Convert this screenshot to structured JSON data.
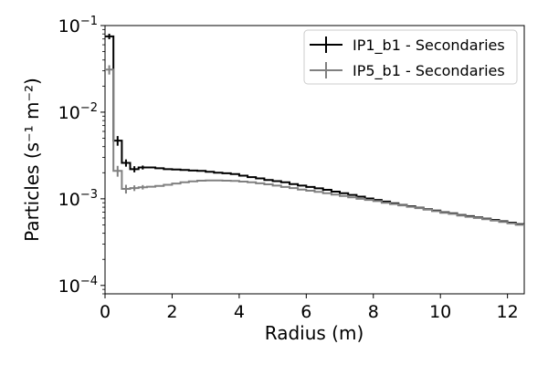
{
  "chart_data": {
    "type": "line",
    "title": "",
    "xlabel": "Radius (m)",
    "ylabel": "Particles (s⁻¹ m⁻²)",
    "xlim": [
      0,
      12.5
    ],
    "ylim": [
      8e-05,
      0.1
    ],
    "yscale": "log",
    "grid": false,
    "legend_position": "top-right",
    "x_ticks": [
      0,
      2,
      4,
      6,
      8,
      10,
      12
    ],
    "y_ticks": [
      {
        "value": 0.1,
        "mantissa": "10",
        "exponent": "−1"
      },
      {
        "value": 0.01,
        "mantissa": "10",
        "exponent": "−2"
      },
      {
        "value": 0.001,
        "mantissa": "10",
        "exponent": "−3"
      },
      {
        "value": 0.0001,
        "mantissa": "10",
        "exponent": "−4"
      }
    ],
    "bin_edges": [
      0,
      0.25,
      0.5,
      0.75,
      1.0,
      1.25,
      1.5,
      1.75,
      2.0,
      2.25,
      2.5,
      2.75,
      3.0,
      3.25,
      3.5,
      3.75,
      4.0,
      4.25,
      4.5,
      4.75,
      5.0,
      5.25,
      5.5,
      5.75,
      6.0,
      6.25,
      6.5,
      6.75,
      7.0,
      7.25,
      7.5,
      7.75,
      8.0,
      8.25,
      8.5,
      8.75,
      9.0,
      9.25,
      9.5,
      9.75,
      10.0,
      10.25,
      10.5,
      10.75,
      11.0,
      11.25,
      11.5,
      11.75,
      12.0,
      12.25,
      12.5
    ],
    "series": [
      {
        "name": "IP1_b1 - Secondaries",
        "color": "#000000",
        "values": [
          0.075,
          0.0047,
          0.0026,
          0.0022,
          0.0023,
          0.0023,
          0.00225,
          0.0022,
          0.00218,
          0.00215,
          0.00212,
          0.0021,
          0.00205,
          0.002,
          0.00197,
          0.00193,
          0.00185,
          0.00178,
          0.00172,
          0.00165,
          0.0016,
          0.00155,
          0.00148,
          0.00142,
          0.00137,
          0.00132,
          0.00127,
          0.00121,
          0.00116,
          0.00111,
          0.00106,
          0.00101,
          0.00097,
          0.00093,
          0.00089,
          0.00085,
          0.00082,
          0.00079,
          0.00076,
          0.00073,
          0.0007,
          0.00068,
          0.00065,
          0.00063,
          0.00061,
          0.00059,
          0.00057,
          0.00055,
          0.00053,
          0.00051
        ]
      },
      {
        "name": "IP5_b1 - Secondaries",
        "color": "#808080",
        "values": [
          0.031,
          0.0021,
          0.0013,
          0.00133,
          0.00136,
          0.00138,
          0.00141,
          0.00145,
          0.0015,
          0.00155,
          0.00159,
          0.00162,
          0.00163,
          0.00163,
          0.00162,
          0.00161,
          0.00158,
          0.00155,
          0.00151,
          0.00147,
          0.00142,
          0.00137,
          0.00133,
          0.00128,
          0.00124,
          0.0012,
          0.00116,
          0.00112,
          0.00108,
          0.00104,
          0.001,
          0.00097,
          0.00094,
          0.0009,
          0.00087,
          0.00084,
          0.00081,
          0.00078,
          0.00075,
          0.00072,
          0.00069,
          0.00067,
          0.00064,
          0.00062,
          0.0006,
          0.00058,
          0.00056,
          0.00054,
          0.00052,
          0.0005
        ]
      }
    ],
    "error_bars": [
      {
        "series": 0,
        "x": 0.125,
        "y": 0.075,
        "yerr": 0.0055
      },
      {
        "series": 0,
        "x": 0.375,
        "y": 0.0047,
        "yerr": 0.0006
      },
      {
        "series": 0,
        "x": 0.625,
        "y": 0.0026,
        "yerr": 0.00025
      },
      {
        "series": 0,
        "x": 0.875,
        "y": 0.0022,
        "yerr": 0.00018
      },
      {
        "series": 0,
        "x": 1.125,
        "y": 0.0023,
        "yerr": 0.00012
      },
      {
        "series": 1,
        "x": 0.125,
        "y": 0.031,
        "yerr": 0.0038
      },
      {
        "series": 1,
        "x": 0.375,
        "y": 0.0021,
        "yerr": 0.0003
      },
      {
        "series": 1,
        "x": 0.625,
        "y": 0.0013,
        "yerr": 0.00015
      },
      {
        "series": 1,
        "x": 0.875,
        "y": 0.00133,
        "yerr": 0.0001
      },
      {
        "series": 1,
        "x": 1.125,
        "y": 0.00136,
        "yerr": 8e-05
      }
    ]
  }
}
